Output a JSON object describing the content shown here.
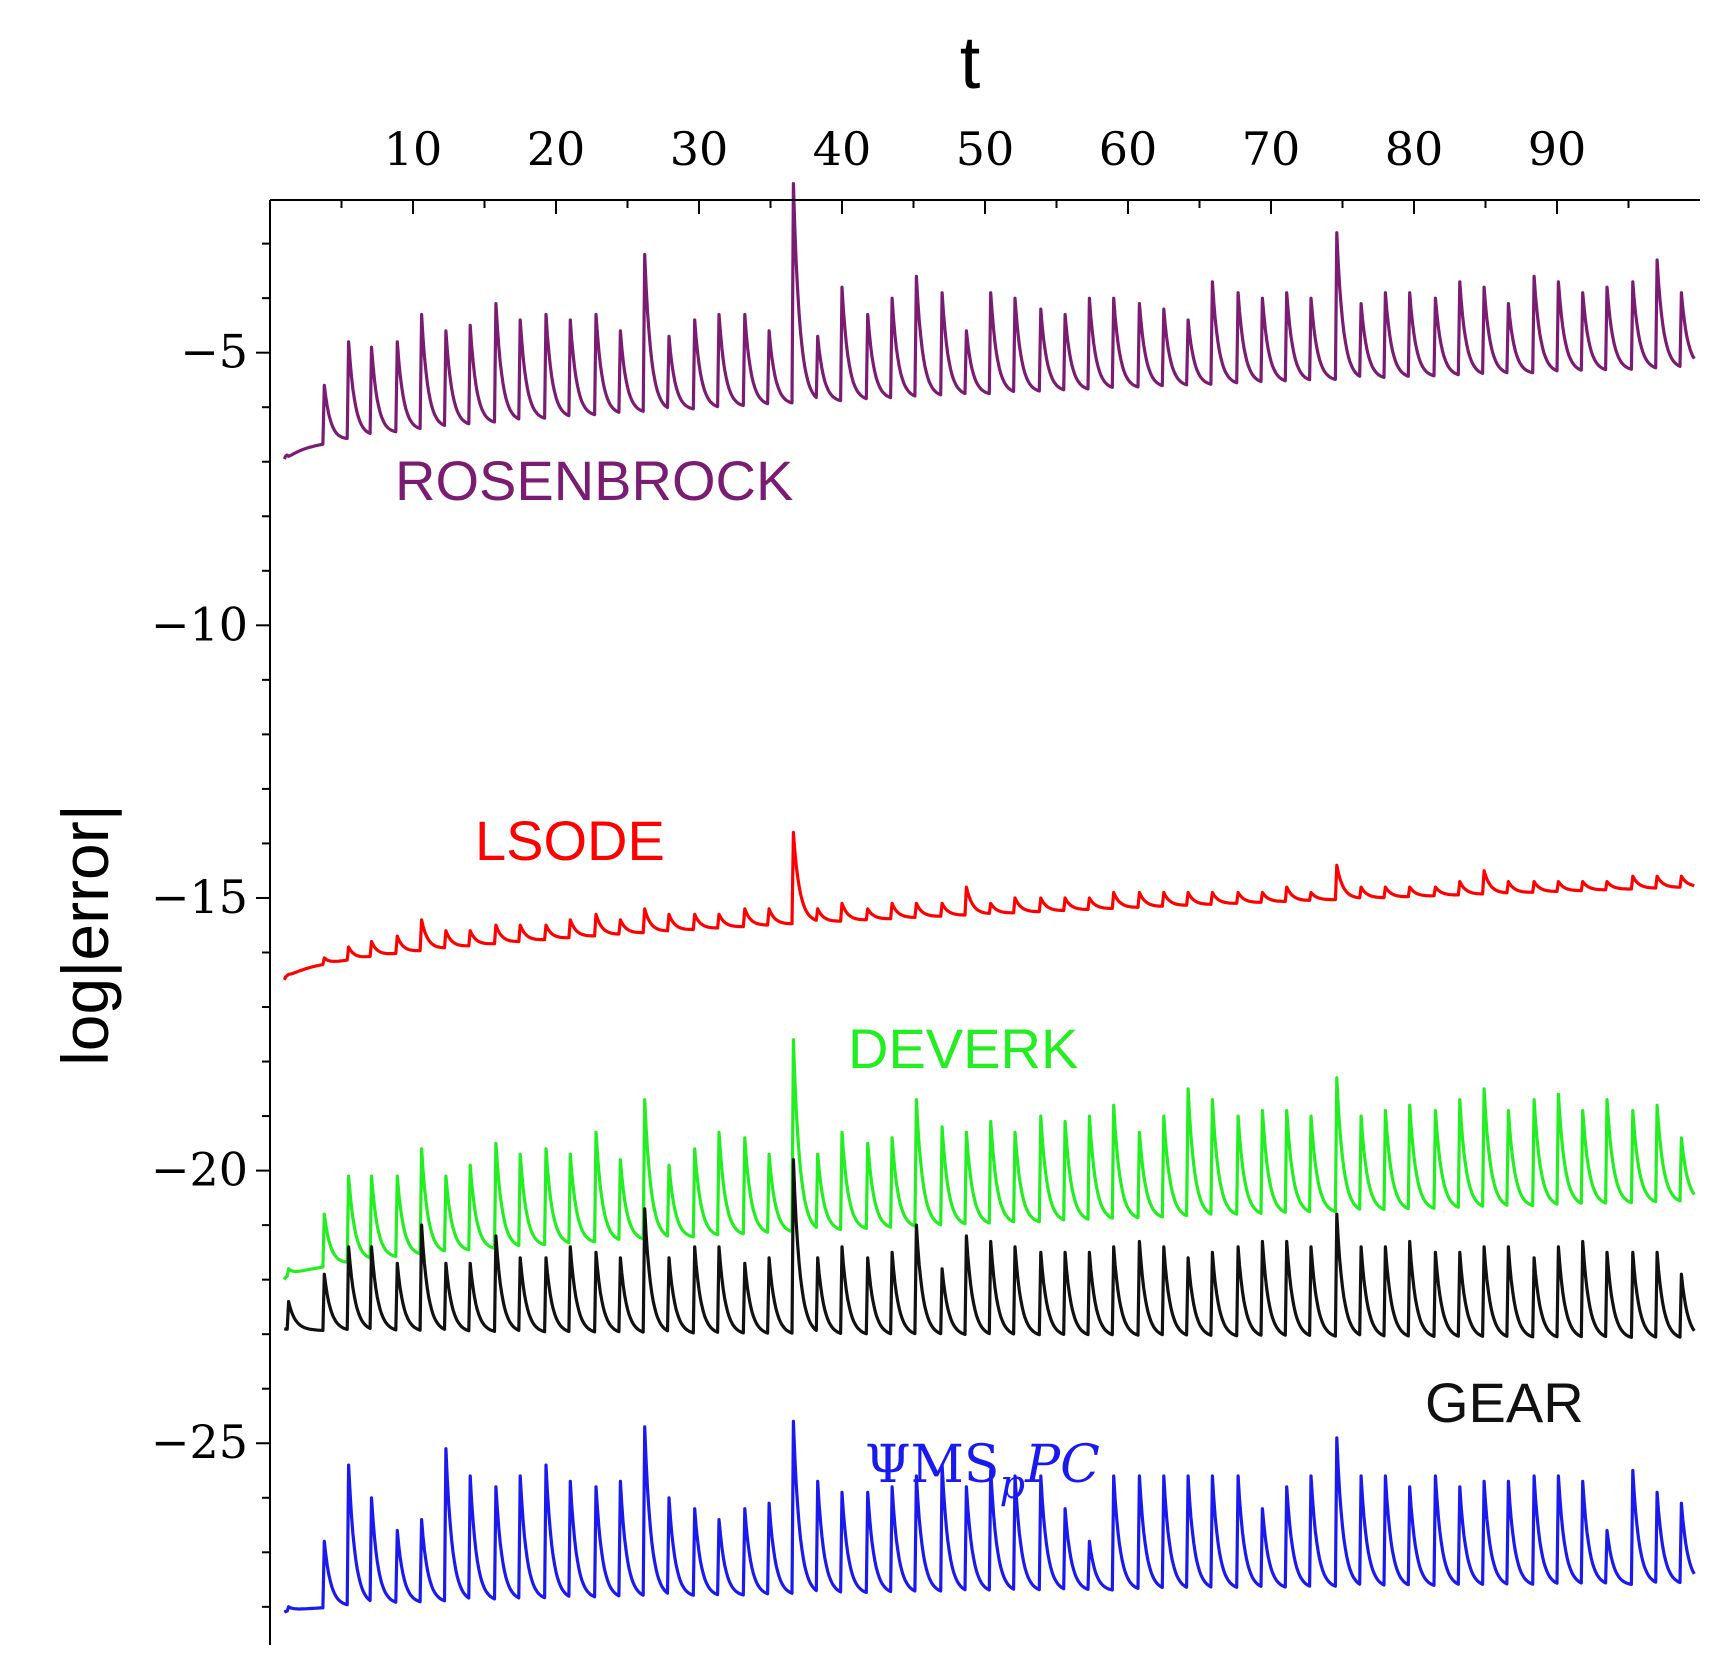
{
  "chart_data": {
    "type": "line",
    "title": "",
    "xlabel": "t",
    "ylabel": "log|error|",
    "xlim": [
      0,
      100
    ],
    "ylim": [
      -28.7,
      -2.2
    ],
    "x_axis_position": "top",
    "grid": false,
    "x_ticks": [
      10,
      20,
      30,
      40,
      50,
      60,
      70,
      80,
      90
    ],
    "x_tick_labels": [
      "10",
      "20",
      "30",
      "40",
      "50",
      "60",
      "70",
      "80",
      "90"
    ],
    "y_ticks": [
      -5,
      -10,
      -15,
      -20,
      -25
    ],
    "y_tick_labels": [
      "−5",
      "−10",
      "−15",
      "−20",
      "−25"
    ],
    "peak_t": [
      1.3,
      3.8,
      5.5,
      7.1,
      8.9,
      10.6,
      12.3,
      14.0,
      15.8,
      17.5,
      19.3,
      21.0,
      22.8,
      24.5,
      26.2,
      27.9,
      29.7,
      31.4,
      33.2,
      34.9,
      36.6,
      38.3,
      40.0,
      41.8,
      43.5,
      45.2,
      47.0,
      48.7,
      50.4,
      52.1,
      53.9,
      55.6,
      57.3,
      59.0,
      60.8,
      62.5,
      64.2,
      65.9,
      67.7,
      69.4,
      71.1,
      72.8,
      74.6,
      76.3,
      78.0,
      79.7,
      81.5,
      83.2,
      84.9,
      86.6,
      88.4,
      90.1,
      91.8,
      93.5,
      95.3,
      97.0,
      98.7
    ],
    "series": [
      {
        "name": "ROSENBROCK",
        "label": "ROSENBROCK",
        "color": "#7b1c73",
        "baseline_start": -6.95,
        "baseline_end": -5.3,
        "peak_values": [
          -6.9,
          -5.6,
          -4.8,
          -4.9,
          -4.8,
          -4.3,
          -4.6,
          -4.5,
          -4.1,
          -4.4,
          -4.3,
          -4.4,
          -4.3,
          -4.6,
          -3.2,
          -4.7,
          -4.4,
          -4.3,
          -4.3,
          -4.6,
          -1.9,
          -4.7,
          -3.8,
          -4.3,
          -4.0,
          -3.6,
          -3.9,
          -4.6,
          -3.9,
          -4.0,
          -4.2,
          -4.3,
          -4.0,
          -4.0,
          -4.1,
          -4.2,
          -4.4,
          -3.7,
          -3.9,
          -4.0,
          -3.9,
          -4.0,
          -2.8,
          -4.1,
          -3.9,
          -3.9,
          -4.0,
          -3.7,
          -3.8,
          -4.1,
          -3.6,
          -3.7,
          -3.9,
          -3.8,
          -3.7,
          -3.3,
          -3.9
        ],
        "label_t": 27
      },
      {
        "name": "LSODE",
        "label": "LSODE",
        "color": "#ff0000",
        "baseline_start": -16.5,
        "baseline_end": -14.8,
        "peak_values": [
          -16.4,
          -16.1,
          -15.9,
          -15.8,
          -15.7,
          -15.4,
          -15.6,
          -15.6,
          -15.5,
          -15.5,
          -15.5,
          -15.4,
          -15.3,
          -15.4,
          -15.2,
          -15.3,
          -15.3,
          -15.3,
          -15.2,
          -15.2,
          -13.8,
          -15.2,
          -15.1,
          -15.2,
          -15.1,
          -15.1,
          -15.1,
          -14.8,
          -15.1,
          -15.0,
          -15.0,
          -15.0,
          -15.0,
          -14.9,
          -14.9,
          -14.9,
          -14.9,
          -14.9,
          -14.9,
          -14.9,
          -14.8,
          -14.9,
          -14.4,
          -14.8,
          -14.8,
          -14.8,
          -14.8,
          -14.7,
          -14.5,
          -14.7,
          -14.7,
          -14.7,
          -14.7,
          -14.7,
          -14.6,
          -14.6,
          -14.6
        ],
        "label_t": 23
      },
      {
        "name": "DEVERK",
        "label": "DEVERK",
        "color": "#22ee22",
        "baseline_start": -22.0,
        "baseline_end": -20.6,
        "peak_values": [
          -21.8,
          -20.8,
          -20.1,
          -20.1,
          -20.1,
          -19.6,
          -20.1,
          -19.9,
          -19.5,
          -19.7,
          -19.6,
          -19.7,
          -19.3,
          -19.8,
          -18.7,
          -19.9,
          -19.6,
          -19.3,
          -19.4,
          -19.7,
          -17.6,
          -19.7,
          -19.3,
          -19.5,
          -19.4,
          -18.7,
          -19.2,
          -19.3,
          -19.1,
          -19.3,
          -19.0,
          -19.1,
          -19.0,
          -18.8,
          -19.3,
          -19.0,
          -18.5,
          -18.7,
          -19.0,
          -18.9,
          -18.9,
          -19.0,
          -18.3,
          -19.0,
          -18.9,
          -18.8,
          -18.9,
          -18.7,
          -18.5,
          -18.9,
          -18.7,
          -18.6,
          -18.9,
          -18.7,
          -18.9,
          -18.8,
          -19.4
        ],
        "label_t": 41
      },
      {
        "name": "GEAR",
        "label": "GEAR",
        "color": "#111111",
        "baseline_start": -22.9,
        "baseline_end": -23.1,
        "peak_values": [
          -22.4,
          -21.9,
          -21.4,
          -21.4,
          -21.7,
          -21.0,
          -21.7,
          -21.7,
          -21.2,
          -21.6,
          -21.6,
          -21.4,
          -21.5,
          -21.6,
          -20.7,
          -21.6,
          -21.4,
          -21.4,
          -21.7,
          -21.6,
          -19.8,
          -21.6,
          -21.4,
          -21.6,
          -21.5,
          -21.0,
          -21.8,
          -21.2,
          -21.3,
          -21.4,
          -21.5,
          -21.5,
          -21.5,
          -21.4,
          -21.3,
          -21.4,
          -21.6,
          -21.5,
          -21.4,
          -21.3,
          -21.3,
          -21.4,
          -20.8,
          -21.4,
          -21.4,
          -21.3,
          -21.5,
          -21.5,
          -21.4,
          -21.4,
          -21.6,
          -21.4,
          -21.3,
          -21.5,
          -21.5,
          -21.5,
          -21.9
        ],
        "label_t": 87
      },
      {
        "name": "ΨMS_pPC",
        "label": "ΨMS",
        "label_sub": "p",
        "label_suffix": "PC",
        "color": "#1a1aee",
        "baseline_start": -28.1,
        "baseline_end": -27.6,
        "peak_values": [
          -28.0,
          -26.8,
          -25.4,
          -26.0,
          -26.6,
          -26.4,
          -25.1,
          -25.6,
          -25.8,
          -25.6,
          -25.4,
          -25.7,
          -25.8,
          -25.7,
          -24.7,
          -26.0,
          -26.2,
          -26.4,
          -26.2,
          -26.1,
          -24.6,
          -25.7,
          -25.9,
          -25.9,
          -25.8,
          -25.6,
          -25.4,
          -25.8,
          -25.5,
          -25.6,
          -25.6,
          -26.2,
          -26.8,
          -25.6,
          -25.6,
          -25.6,
          -25.6,
          -25.6,
          -25.6,
          -26.2,
          -25.8,
          -25.6,
          -24.9,
          -25.6,
          -25.6,
          -25.8,
          -25.6,
          -25.8,
          -25.7,
          -25.7,
          -25.6,
          -25.6,
          -25.7,
          -26.6,
          -25.5,
          -25.9,
          -26.1
        ],
        "label_t": 53
      }
    ]
  }
}
